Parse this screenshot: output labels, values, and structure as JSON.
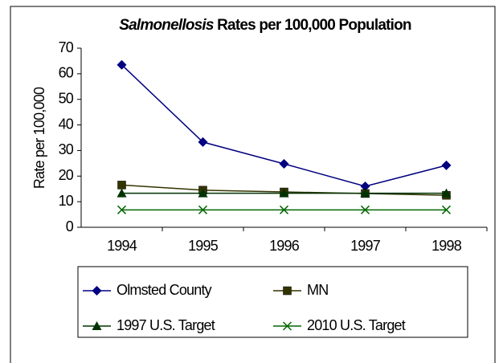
{
  "chart_data": {
    "type": "line",
    "title": [
      "Salmonellosis",
      "Rates per 100,000 Population"
    ],
    "y_label": "Rate per 100,000",
    "categories": [
      "1994",
      "1995",
      "1996",
      "1997",
      "1998"
    ],
    "series": [
      {
        "name": "Olmsted County",
        "color": "#000080",
        "marker": "diamond",
        "values": [
          63.5,
          33.3,
          24.8,
          16,
          24.2
        ]
      },
      {
        "name": "MN",
        "color": "#333300",
        "marker": "square",
        "values": [
          16.5,
          14.5,
          13.8,
          13.2,
          12.5
        ]
      },
      {
        "name": "1997 U.S. Target",
        "color": "#003300",
        "marker": "triangle",
        "values": [
          13.3,
          13.3,
          13.3,
          13.3,
          13.3
        ]
      },
      {
        "name": "2010 U.S. Target",
        "color": "#006600",
        "marker": "x",
        "values": [
          6.8,
          6.8,
          6.8,
          6.8,
          6.8
        ]
      }
    ],
    "ylim": [
      0,
      70
    ],
    "yticks": [
      0,
      10,
      20,
      30,
      40,
      50,
      60,
      70
    ]
  }
}
